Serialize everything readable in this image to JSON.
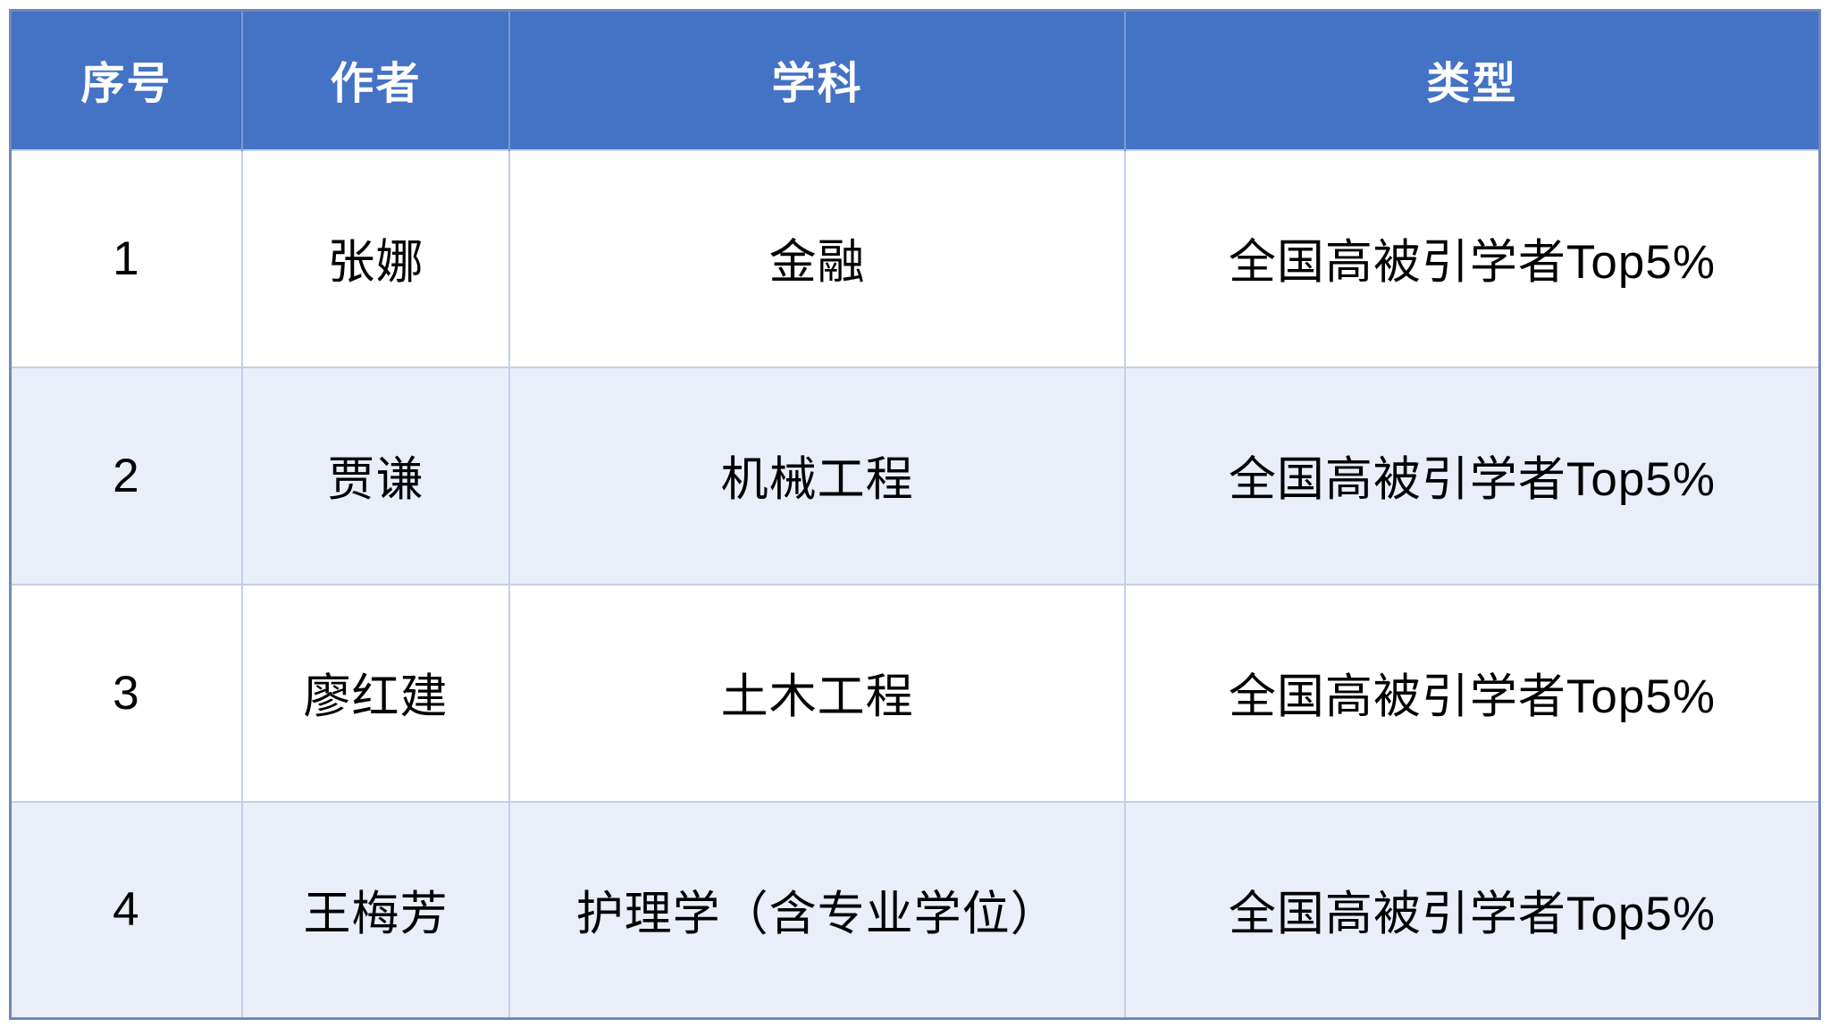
{
  "table": {
    "columns": [
      {
        "key": "no",
        "label": "序号"
      },
      {
        "key": "author",
        "label": "作者"
      },
      {
        "key": "subject",
        "label": "学科"
      },
      {
        "key": "type",
        "label": "类型"
      }
    ],
    "rows": [
      {
        "no": "1",
        "author": "张娜",
        "subject": "金融",
        "type": "全国高被引学者Top5%"
      },
      {
        "no": "2",
        "author": "贾谦",
        "subject": "机械工程",
        "type": "全国高被引学者Top5%"
      },
      {
        "no": "3",
        "author": "廖红建",
        "subject": "土木工程",
        "type": "全国高被引学者Top5%"
      },
      {
        "no": "4",
        "author": "王梅芳",
        "subject": "护理学（含专业学位）",
        "type": "全国高被引学者Top5%"
      }
    ]
  },
  "colors": {
    "header_background": "#4472c4",
    "header_text": "#ffffff",
    "stripe_row_background": "#e9eef8",
    "grid_line": "#c3d0e8",
    "outer_border": "#7288b8",
    "body_text": "#000000"
  }
}
